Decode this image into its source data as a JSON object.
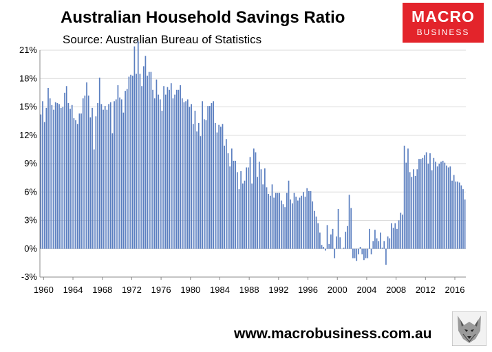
{
  "header": {
    "title": "Australian Household Savings Ratio",
    "subtitle": "Source: Australian Bureau of Statistics"
  },
  "logo": {
    "line1": "MACRO",
    "line2": "BUSINESS"
  },
  "footer": {
    "url": "www.macrobusiness.com.au"
  },
  "colors": {
    "bar": "#5b7fc0",
    "logo_bg": "#e3242b",
    "grid": "#d9d9d9"
  },
  "icons": {
    "wolf": "wolf-head-icon"
  },
  "chart_data": {
    "type": "bar",
    "title": "Australian Household Savings Ratio",
    "xlabel": "",
    "ylabel": "",
    "ylim": [
      -3,
      21
    ],
    "y_ticks": [
      "-3%",
      "0%",
      "3%",
      "6%",
      "9%",
      "12%",
      "15%",
      "18%",
      "21%"
    ],
    "y_tick_values": [
      -3,
      0,
      3,
      6,
      9,
      12,
      15,
      18,
      21
    ],
    "x_ticks": [
      "1960",
      "1964",
      "1968",
      "1972",
      "1976",
      "1980",
      "1984",
      "1988",
      "1992",
      "1996",
      "2000",
      "2004",
      "2008",
      "2012",
      "2016"
    ],
    "x_tick_values": [
      1960,
      1964,
      1968,
      1972,
      1976,
      1980,
      1984,
      1988,
      1992,
      1996,
      2000,
      2004,
      2008,
      2012,
      2016
    ],
    "x_start": 1959.5,
    "frequency": "quarterly",
    "grid": true,
    "legend": "none",
    "series": [
      {
        "values": [
          14.2,
          15.6,
          13.4,
          14.9,
          17.0,
          15.9,
          15.2,
          14.7,
          15.5,
          15.4,
          15.3,
          14.9,
          15.0,
          16.5,
          17.2,
          15.4,
          14.8,
          15.2,
          13.8,
          13.6,
          13.2,
          14.3,
          14.3,
          15.9,
          16.2,
          17.6,
          16.2,
          13.9,
          14.9,
          10.5,
          14.0,
          15.4,
          18.1,
          15.3,
          14.7,
          15.1,
          14.7,
          15.3,
          15.5,
          12.2,
          15.6,
          15.8,
          17.3,
          16.0,
          15.8,
          14.4,
          16.7,
          16.9,
          18.2,
          18.4,
          18.3,
          21.4,
          18.5,
          22.0,
          18.5,
          17.2,
          19.3,
          20.4,
          18.3,
          18.7,
          18.7,
          16.8,
          15.9,
          17.9,
          16.3,
          15.8,
          14.6,
          17.2,
          16.3,
          17.1,
          16.8,
          17.5,
          15.9,
          16.3,
          16.8,
          16.8,
          17.3,
          15.9,
          15.5,
          15.6,
          15.8,
          15.0,
          15.3,
          13.2,
          14.6,
          12.4,
          13.3,
          11.9,
          15.6,
          13.7,
          13.6,
          15.1,
          15.1,
          15.4,
          15.6,
          13.3,
          12.3,
          13.1,
          12.9,
          13.2,
          10.9,
          11.6,
          10.1,
          8.7,
          10.6,
          9.3,
          9.3,
          8.1,
          6.3,
          8.2,
          6.9,
          7.2,
          8.6,
          8.6,
          9.7,
          6.9,
          10.6,
          10.2,
          7.6,
          9.2,
          8.4,
          6.8,
          8.5,
          6.5,
          5.8,
          5.6,
          6.8,
          5.4,
          5.9,
          5.9,
          5.9,
          5.1,
          4.7,
          4.4,
          5.9,
          7.2,
          5.2,
          4.8,
          5.9,
          5.5,
          5.1,
          5.4,
          5.6,
          6.0,
          5.5,
          6.4,
          6.1,
          6.1,
          5.0,
          4.0,
          3.4,
          2.7,
          1.7,
          0.4,
          0.2,
          -0.2,
          2.5,
          0.5,
          1.5,
          2.1,
          -1.0,
          1.3,
          4.2,
          1.2,
          0.0,
          0.1,
          1.8,
          2.4,
          5.7,
          4.3,
          -1.0,
          -1.0,
          -1.3,
          -0.6,
          0.2,
          -0.6,
          -1.2,
          -1.0,
          -1.0,
          2.1,
          -0.6,
          0.8,
          2.0,
          1.1,
          0.8,
          1.7,
          0.1,
          0.8,
          -1.7,
          1.3,
          1.1,
          2.7,
          2.2,
          2.7,
          2.1,
          3.0,
          3.8,
          3.6,
          10.9,
          9.1,
          10.6,
          8.1,
          7.6,
          8.4,
          7.7,
          8.4,
          9.5,
          9.5,
          9.6,
          9.9,
          10.2,
          9.0,
          10.1,
          8.3,
          9.6,
          9.2,
          8.7,
          9.0,
          9.2,
          9.3,
          9.1,
          8.8,
          8.6,
          8.7,
          7.2,
          7.8,
          7.1,
          7.1,
          7.0,
          6.7,
          6.3,
          5.2
        ]
      }
    ]
  }
}
